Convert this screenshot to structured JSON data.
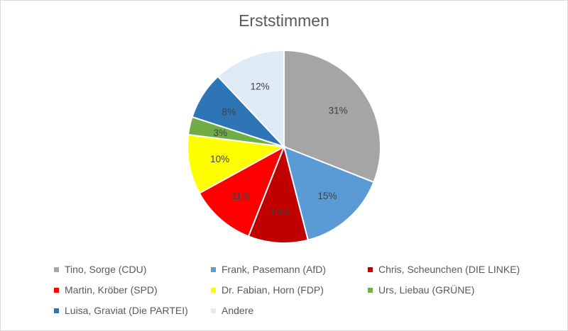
{
  "chart_data": {
    "type": "pie",
    "title": "Erststimmen",
    "slices": [
      {
        "name": "Tino, Sorge (CDU)",
        "value": 31,
        "label": "31%",
        "color": "#a5a5a5"
      },
      {
        "name": "Frank, Pasemann (AfD)",
        "value": 15,
        "label": "15%",
        "color": "#5b9bd5"
      },
      {
        "name": "Chris, Scheunchen (DIE LINKE)",
        "value": 10,
        "label": "10%",
        "color": "#c00000"
      },
      {
        "name": "Martin, Kröber (SPD)",
        "value": 11,
        "label": "11%",
        "color": "#ff0000"
      },
      {
        "name": "Dr. Fabian, Horn (FDP)",
        "value": 10,
        "label": "10%",
        "color": "#ffff00"
      },
      {
        "name": "Urs, Liebau (GRÜNE)",
        "value": 3,
        "label": "3%",
        "color": "#70ad47"
      },
      {
        "name": "Luisa, Graviat (Die PARTEI)",
        "value": 8,
        "label": "8%",
        "color": "#2e75b6"
      },
      {
        "name": "Andere",
        "value": 12,
        "label": "12%",
        "color": "#deebf7"
      }
    ],
    "legend_position": "bottom"
  }
}
